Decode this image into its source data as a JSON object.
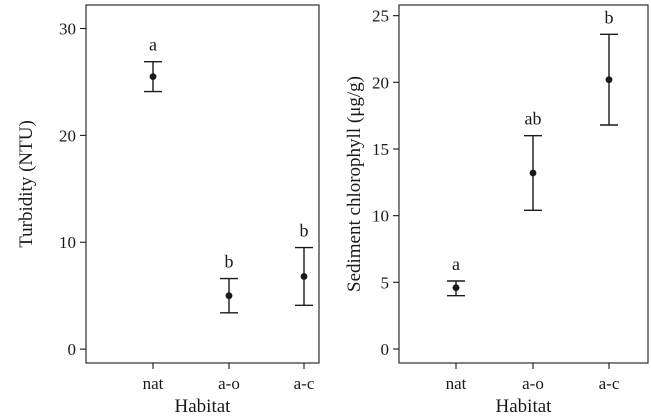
{
  "chart_data": [
    {
      "type": "scatter",
      "title": "",
      "xlabel": "Habitat",
      "ylabel": "Turbidity (NTU)",
      "categories": [
        "nat",
        "a-o",
        "a-c"
      ],
      "ylim": [
        -1.3,
        32.2
      ],
      "yticks": [
        0,
        10,
        20,
        30
      ],
      "grid": false,
      "series": [
        {
          "mean": [
            25.5,
            5.0,
            6.8
          ],
          "lower": [
            24.1,
            3.4,
            4.1
          ],
          "upper": [
            26.9,
            6.6,
            9.5
          ],
          "labels": [
            "a",
            "b",
            "b"
          ]
        }
      ]
    },
    {
      "type": "scatter",
      "title": "",
      "xlabel": "Habitat",
      "ylabel": "Sediment chlorophyll (μg/g)",
      "categories": [
        "nat",
        "a-o",
        "a-c"
      ],
      "ylim": [
        -1.05,
        25.8
      ],
      "yticks": [
        0,
        5,
        10,
        15,
        20,
        25
      ],
      "grid": false,
      "series": [
        {
          "mean": [
            4.6,
            13.2,
            20.2
          ],
          "lower": [
            4.0,
            10.4,
            16.8
          ],
          "upper": [
            5.1,
            16.0,
            23.6
          ],
          "labels": [
            "a",
            "ab",
            "b"
          ]
        }
      ]
    }
  ],
  "colors": {
    "ink": "#1a1a1a",
    "background": "#ffffff"
  }
}
